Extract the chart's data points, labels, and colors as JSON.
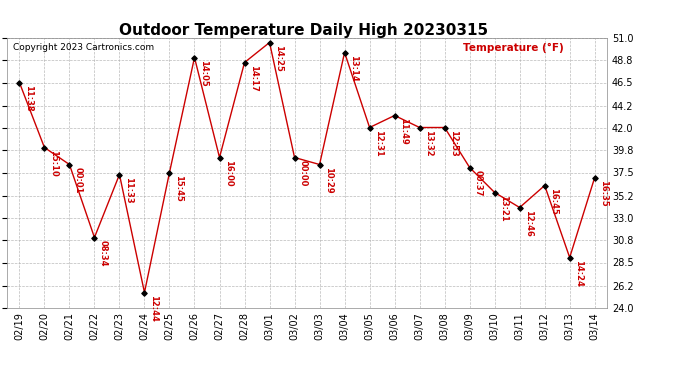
{
  "title": "Outdoor Temperature Daily High 20230315",
  "temp_label": "Temperature (°F)",
  "copyright": "Copyright 2023 Cartronics.com",
  "bg": "#ffffff",
  "line_color": "#cc0000",
  "dot_color": "#000000",
  "label_color": "#cc0000",
  "ylim": [
    24.0,
    51.0
  ],
  "yticks": [
    24.0,
    26.2,
    28.5,
    30.8,
    33.0,
    35.2,
    37.5,
    39.8,
    42.0,
    44.2,
    46.5,
    48.8,
    51.0
  ],
  "dates": [
    "02/19",
    "02/20",
    "02/21",
    "02/22",
    "02/23",
    "02/24",
    "02/25",
    "02/26",
    "02/27",
    "02/28",
    "03/01",
    "03/02",
    "03/03",
    "03/04",
    "03/05",
    "03/06",
    "03/07",
    "03/08",
    "03/09",
    "03/10",
    "03/11",
    "03/12",
    "03/13",
    "03/14"
  ],
  "temps": [
    46.5,
    40.0,
    38.3,
    31.0,
    37.3,
    25.5,
    37.5,
    49.0,
    39.0,
    48.5,
    50.5,
    39.0,
    38.3,
    49.5,
    42.0,
    43.2,
    42.0,
    42.0,
    38.0,
    35.5,
    34.0,
    36.2,
    29.0,
    37.0
  ],
  "labels": [
    "11:38",
    "15:10",
    "00:01",
    "08:34",
    "11:33",
    "12:44",
    "15:45",
    "14:05",
    "16:00",
    "14:17",
    "14:25",
    "00:00",
    "10:29",
    "13:14",
    "12:31",
    "11:49",
    "13:32",
    "12:53",
    "00:37",
    "13:21",
    "12:46",
    "16:45",
    "14:24",
    "16:35"
  ],
  "title_fontsize": 11,
  "tick_fontsize": 7,
  "label_fontsize": 6,
  "copyright_fontsize": 6.5
}
